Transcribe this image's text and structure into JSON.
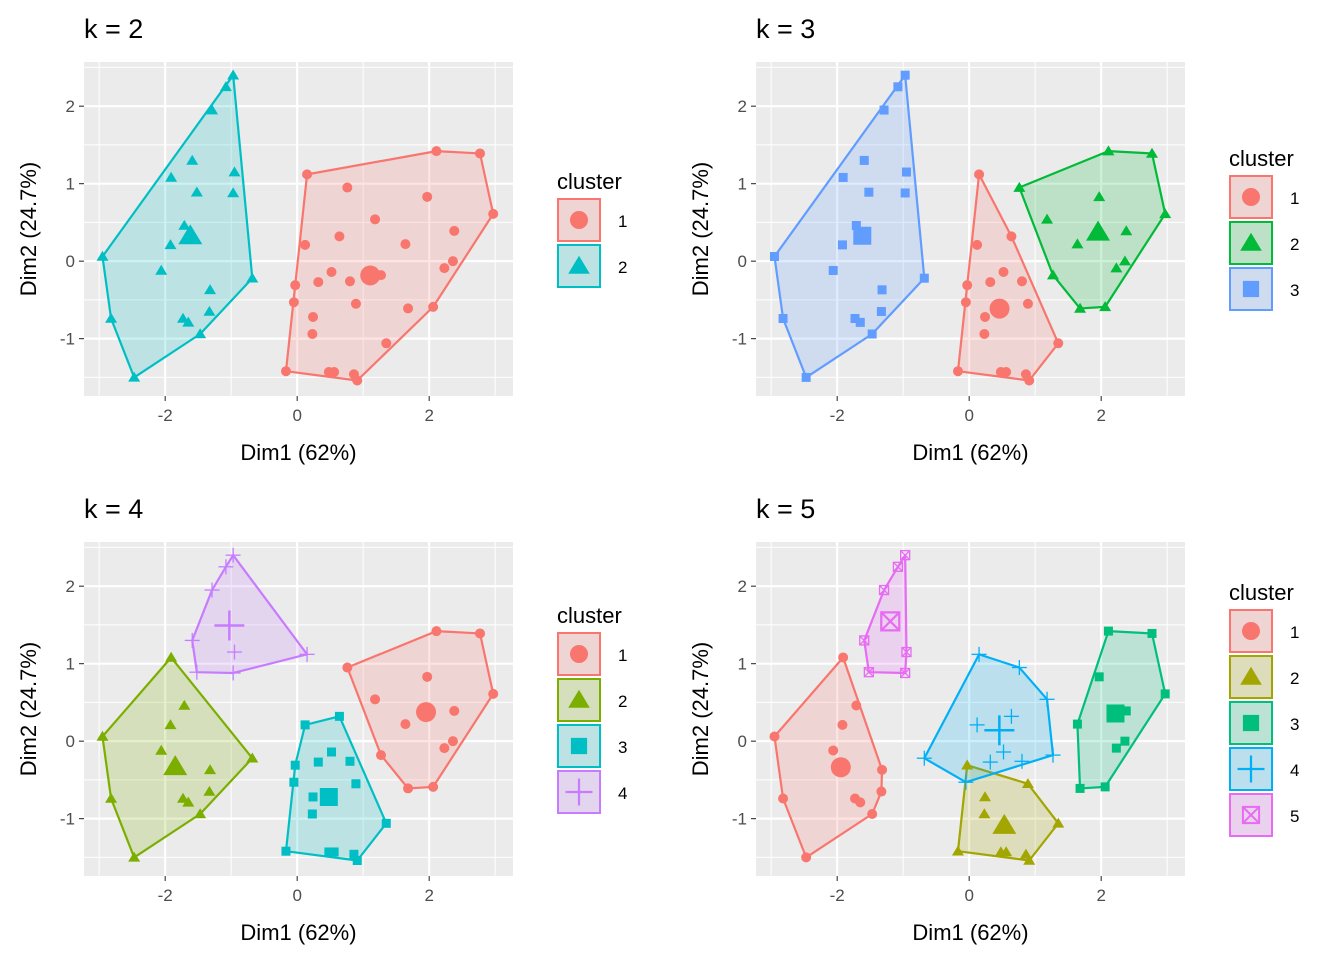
{
  "chart_data": {
    "type": "scatter",
    "xlabel": "Dim1 (62%)",
    "ylabel": "Dim2 (24.7%)",
    "xlim": [
      -3.23,
      3.27
    ],
    "ylim": [
      -1.74,
      2.57
    ],
    "xticks": [
      "-2",
      "0",
      "2"
    ],
    "xtick_values": [
      -2,
      0,
      2
    ],
    "yticks": [
      "-1",
      "0",
      "1",
      "2"
    ],
    "ytick_values": [
      -1,
      0,
      1,
      2
    ],
    "grid": true,
    "legend_placement": "right",
    "legend_title": "cluster",
    "points": [
      [
        -0.97,
        2.4
      ],
      [
        -1.08,
        2.25
      ],
      [
        -1.29,
        1.95
      ],
      [
        -1.59,
        1.3
      ],
      [
        -0.95,
        1.15
      ],
      [
        -1.52,
        0.89
      ],
      [
        -0.97,
        0.88
      ],
      [
        -1.91,
        1.08
      ],
      [
        -1.71,
        0.46
      ],
      [
        -1.92,
        0.21
      ],
      [
        -2.06,
        -0.12
      ],
      [
        -1.32,
        -0.37
      ],
      [
        -1.33,
        -0.65
      ],
      [
        -0.68,
        -0.22
      ],
      [
        -2.95,
        0.06
      ],
      [
        -2.82,
        -0.74
      ],
      [
        -1.73,
        -0.74
      ],
      [
        -1.65,
        -0.79
      ],
      [
        -1.47,
        -0.94
      ],
      [
        -2.47,
        -1.5
      ],
      [
        0.15,
        1.12
      ],
      [
        2.11,
        1.42
      ],
      [
        2.77,
        1.39
      ],
      [
        2.97,
        0.61
      ],
      [
        0.76,
        0.95
      ],
      [
        1.97,
        0.83
      ],
      [
        1.18,
        0.54
      ],
      [
        0.64,
        0.32
      ],
      [
        2.38,
        0.39
      ],
      [
        0.12,
        0.21
      ],
      [
        1.64,
        0.22
      ],
      [
        2.36,
        0.0
      ],
      [
        2.23,
        -0.09
      ],
      [
        0.52,
        -0.14
      ],
      [
        1.27,
        -0.18
      ],
      [
        0.32,
        -0.27
      ],
      [
        0.8,
        -0.26
      ],
      [
        -0.03,
        -0.31
      ],
      [
        -0.05,
        -0.53
      ],
      [
        0.89,
        -0.55
      ],
      [
        1.68,
        -0.61
      ],
      [
        2.06,
        -0.59
      ],
      [
        0.24,
        -0.72
      ],
      [
        0.23,
        -0.94
      ],
      [
        1.35,
        -1.06
      ],
      [
        -0.17,
        -1.42
      ],
      [
        0.48,
        -1.43
      ],
      [
        0.56,
        -1.43
      ],
      [
        0.86,
        -1.46
      ],
      [
        0.91,
        -1.54
      ]
    ],
    "panels": [
      {
        "title": "k = 2",
        "legend_labels": [
          "1",
          "2"
        ],
        "colors": [
          "#F8766D",
          "#00BFC4"
        ],
        "shapes": [
          "circle",
          "triangle"
        ],
        "clusters": [
          2,
          2,
          2,
          2,
          2,
          2,
          2,
          2,
          2,
          2,
          2,
          2,
          2,
          2,
          2,
          2,
          2,
          2,
          2,
          2,
          1,
          1,
          1,
          1,
          1,
          1,
          1,
          1,
          1,
          1,
          1,
          1,
          1,
          1,
          1,
          1,
          1,
          1,
          1,
          1,
          1,
          1,
          1,
          1,
          1,
          1,
          1,
          1,
          1,
          1
        ]
      },
      {
        "title": "k = 3",
        "legend_labels": [
          "1",
          "2",
          "3"
        ],
        "colors": [
          "#F8766D",
          "#00BA38",
          "#619CFF"
        ],
        "shapes": [
          "circle",
          "triangle",
          "square"
        ],
        "clusters": [
          3,
          3,
          3,
          3,
          3,
          3,
          3,
          3,
          3,
          3,
          3,
          3,
          3,
          3,
          3,
          3,
          3,
          3,
          3,
          3,
          1,
          2,
          2,
          2,
          2,
          2,
          2,
          1,
          2,
          1,
          2,
          2,
          2,
          1,
          2,
          1,
          1,
          1,
          1,
          1,
          2,
          2,
          1,
          1,
          1,
          1,
          1,
          1,
          1,
          1
        ]
      },
      {
        "title": "k = 4",
        "legend_labels": [
          "1",
          "2",
          "3",
          "4"
        ],
        "colors": [
          "#F8766D",
          "#7CAE00",
          "#00BFC4",
          "#C77CFF"
        ],
        "shapes": [
          "circle",
          "triangle",
          "square",
          "plus"
        ],
        "clusters": [
          4,
          4,
          4,
          4,
          4,
          4,
          4,
          2,
          2,
          2,
          2,
          2,
          2,
          2,
          2,
          2,
          2,
          2,
          2,
          2,
          4,
          1,
          1,
          1,
          1,
          1,
          1,
          3,
          1,
          3,
          1,
          1,
          1,
          3,
          1,
          3,
          3,
          3,
          3,
          3,
          1,
          1,
          3,
          3,
          3,
          3,
          3,
          3,
          3,
          3
        ]
      },
      {
        "title": "k = 5",
        "legend_labels": [
          "1",
          "2",
          "3",
          "4",
          "5"
        ],
        "colors": [
          "#F8766D",
          "#A3A500",
          "#00BF7D",
          "#00B0F6",
          "#E76BF3"
        ],
        "shapes": [
          "circle",
          "triangle",
          "square",
          "plus",
          "square-cross"
        ],
        "clusters": [
          5,
          5,
          5,
          5,
          5,
          5,
          5,
          1,
          1,
          1,
          1,
          1,
          1,
          4,
          1,
          1,
          1,
          1,
          1,
          1,
          4,
          3,
          3,
          3,
          4,
          3,
          4,
          4,
          3,
          4,
          3,
          3,
          3,
          4,
          4,
          4,
          4,
          2,
          4,
          2,
          3,
          3,
          2,
          2,
          2,
          2,
          2,
          2,
          2,
          2
        ]
      }
    ]
  }
}
